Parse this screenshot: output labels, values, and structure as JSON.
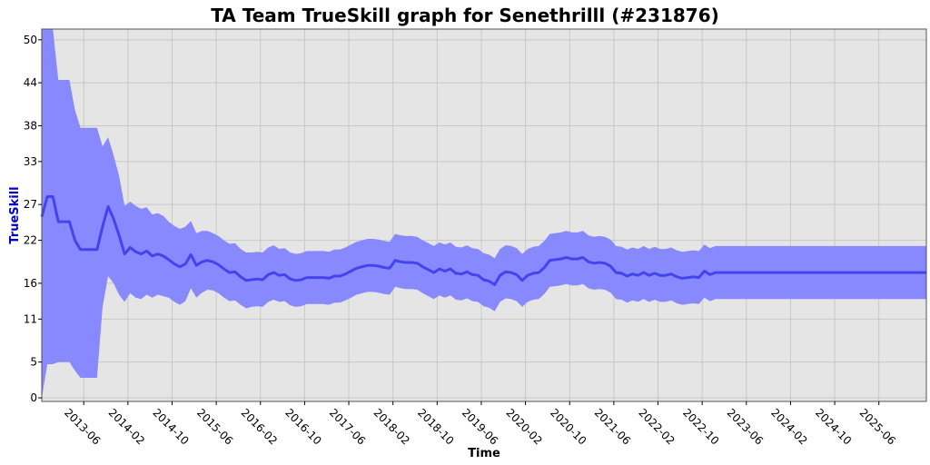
{
  "chart_data": {
    "type": "line",
    "title": "TA Team TrueSkill graph for Senethrilll (#231876)",
    "xlabel": "Time",
    "ylabel": "TrueSkill",
    "y_ticks": [
      0,
      5,
      11,
      16,
      22,
      27,
      33,
      38,
      44,
      50
    ],
    "ylim": [
      -0.5,
      51.5
    ],
    "x_tick_labels": [
      "2013-06",
      "2014-02",
      "2014-10",
      "2015-06",
      "2016-02",
      "2016-10",
      "2017-06",
      "2018-02",
      "2018-10",
      "2019-06",
      "2020-02",
      "2020-10",
      "2021-06",
      "2022-02",
      "2022-10",
      "2023-06",
      "2024-02",
      "2024-10",
      "2025-06"
    ],
    "x_tick_positions": [
      1,
      9,
      17,
      25,
      33,
      41,
      49,
      57,
      65,
      73,
      81,
      89,
      97,
      105,
      113,
      121,
      129,
      137,
      145
    ],
    "xlim": [
      -6.6,
      153.6
    ],
    "grid": true,
    "colors": {
      "line": "#4444ee",
      "band": "#8888ff",
      "plot_bg": "#e5e5e5",
      "grid": "#c8c8c8"
    },
    "series": [
      {
        "x": [
          -6.6,
          -5.6,
          -4.6,
          -3.6,
          -2.6,
          -1.6,
          -0.6,
          0.4,
          1.4,
          2.4,
          3.4,
          4.4,
          5.4,
          6.4,
          7.4,
          8.4,
          9.4,
          10.4,
          11.4,
          12.4,
          13.4,
          14.4,
          15.4,
          16.4,
          17.4,
          18.4,
          19.4,
          20.4,
          21.4,
          22.4,
          23.4,
          24.4,
          25.4,
          26.4,
          27.4,
          28.4,
          29.4,
          30.4,
          31.4,
          32.4,
          33.4,
          34.4,
          35.4,
          36.4,
          37.4,
          38.4,
          39.4,
          40.4,
          41.4,
          42.4,
          43.4,
          44.4,
          45.4,
          46.4,
          47.4,
          48.4,
          49.4,
          50.4,
          51.4,
          52.4,
          53.4,
          54.4,
          55.4,
          56.4,
          57.4,
          58.4,
          59.4,
          60.4,
          61.4,
          62.4,
          63.4,
          64.4,
          65.4,
          66.4,
          67.4,
          68.4,
          69.4,
          70.4,
          71.4,
          72.4,
          73.4,
          74.4,
          75.4,
          76.4,
          77.4,
          78.4,
          79.4,
          80.4,
          81.4,
          82.4,
          83.4,
          84.4,
          85.4,
          86.4,
          87.4,
          88.4,
          89.4,
          90.4,
          91.4,
          92.4,
          93.4,
          94.4,
          95.4,
          96.4,
          97.4,
          98.4,
          99.4,
          100.4,
          101.4,
          102.4,
          103.4,
          104.4,
          105.4,
          106.4,
          107.4,
          108.4,
          109.4,
          110.4,
          111.4,
          112.4,
          113.4,
          114.4,
          115.4,
          153.6
        ],
        "mean": [
          25.3,
          28.1,
          28.1,
          24.6,
          24.6,
          24.6,
          22.0,
          20.7,
          20.7,
          20.7,
          20.7,
          23.9,
          26.7,
          25.0,
          22.7,
          20.1,
          21.0,
          20.4,
          20.1,
          20.5,
          19.8,
          20.1,
          19.8,
          19.3,
          18.7,
          18.3,
          18.7,
          20.0,
          18.5,
          19.0,
          19.2,
          19.0,
          18.6,
          18.0,
          17.5,
          17.6,
          16.9,
          16.4,
          16.5,
          16.6,
          16.5,
          17.2,
          17.5,
          17.1,
          17.2,
          16.6,
          16.4,
          16.5,
          16.8,
          16.8,
          16.8,
          16.8,
          16.7,
          17.0,
          17.0,
          17.3,
          17.7,
          18.1,
          18.3,
          18.5,
          18.5,
          18.4,
          18.2,
          18.1,
          19.2,
          19.0,
          18.9,
          18.9,
          18.8,
          18.3,
          17.9,
          17.5,
          18.0,
          17.7,
          18.0,
          17.4,
          17.3,
          17.6,
          17.2,
          17.1,
          16.5,
          16.3,
          15.8,
          17.1,
          17.6,
          17.5,
          17.2,
          16.4,
          17.1,
          17.4,
          17.5,
          18.2,
          19.2,
          19.3,
          19.4,
          19.6,
          19.4,
          19.4,
          19.6,
          19.0,
          18.8,
          18.9,
          18.8,
          18.4,
          17.5,
          17.4,
          17.0,
          17.3,
          17.1,
          17.5,
          17.1,
          17.4,
          17.1,
          17.1,
          17.3,
          16.9,
          16.7,
          16.8,
          16.9,
          16.8,
          17.7,
          17.2,
          17.5,
          17.5
        ],
        "upper": [
          51.5,
          51.5,
          51.5,
          44.4,
          44.4,
          44.4,
          40.2,
          37.7,
          37.7,
          37.7,
          37.7,
          35.1,
          36.4,
          33.9,
          31.0,
          26.8,
          27.4,
          26.8,
          26.4,
          26.6,
          25.6,
          25.8,
          25.4,
          24.6,
          24.0,
          23.6,
          23.9,
          24.7,
          23.0,
          23.3,
          23.3,
          23.0,
          22.6,
          22.0,
          21.5,
          21.6,
          20.8,
          20.3,
          20.3,
          20.4,
          20.3,
          21.0,
          21.3,
          20.8,
          20.9,
          20.3,
          20.1,
          20.2,
          20.5,
          20.5,
          20.5,
          20.5,
          20.4,
          20.7,
          20.7,
          21.0,
          21.4,
          21.8,
          22.0,
          22.2,
          22.2,
          22.1,
          21.9,
          21.8,
          22.9,
          22.7,
          22.6,
          22.6,
          22.5,
          22.0,
          21.6,
          21.2,
          21.7,
          21.4,
          21.7,
          21.1,
          21.0,
          21.3,
          20.9,
          20.8,
          20.2,
          20.0,
          19.5,
          20.8,
          21.3,
          21.2,
          20.9,
          20.1,
          20.8,
          21.1,
          21.2,
          21.9,
          22.9,
          23.0,
          23.1,
          23.3,
          23.1,
          23.1,
          23.3,
          22.7,
          22.5,
          22.6,
          22.5,
          22.1,
          21.2,
          21.1,
          20.7,
          21.0,
          20.8,
          21.2,
          20.8,
          21.1,
          20.8,
          20.8,
          21.0,
          20.6,
          20.4,
          20.5,
          20.6,
          20.5,
          21.4,
          20.9,
          21.2,
          21.2
        ],
        "lower": [
          0.0,
          4.7,
          4.7,
          5.0,
          5.0,
          5.0,
          3.8,
          2.8,
          2.8,
          2.8,
          2.8,
          12.7,
          17.0,
          16.0,
          14.4,
          13.4,
          14.6,
          14.0,
          13.8,
          14.4,
          14.0,
          14.4,
          14.2,
          14.0,
          13.4,
          13.0,
          13.5,
          15.3,
          14.0,
          14.7,
          15.1,
          15.0,
          14.6,
          14.0,
          13.5,
          13.6,
          13.0,
          12.5,
          12.7,
          12.8,
          12.7,
          13.4,
          13.7,
          13.4,
          13.5,
          12.9,
          12.7,
          12.8,
          13.1,
          13.1,
          13.1,
          13.1,
          13.0,
          13.3,
          13.3,
          13.6,
          14.0,
          14.4,
          14.6,
          14.8,
          14.8,
          14.7,
          14.5,
          14.4,
          15.5,
          15.3,
          15.2,
          15.2,
          15.1,
          14.6,
          14.2,
          13.8,
          14.3,
          14.0,
          14.3,
          13.7,
          13.6,
          13.9,
          13.5,
          13.4,
          12.8,
          12.6,
          12.1,
          13.4,
          13.9,
          13.8,
          13.5,
          12.7,
          13.4,
          13.7,
          13.8,
          14.5,
          15.5,
          15.6,
          15.7,
          15.9,
          15.7,
          15.7,
          15.9,
          15.3,
          15.1,
          15.2,
          15.1,
          14.7,
          13.8,
          13.7,
          13.3,
          13.6,
          13.4,
          13.8,
          13.4,
          13.7,
          13.4,
          13.4,
          13.6,
          13.2,
          13.0,
          13.1,
          13.2,
          13.1,
          14.0,
          13.5,
          13.8,
          13.8
        ]
      }
    ]
  }
}
